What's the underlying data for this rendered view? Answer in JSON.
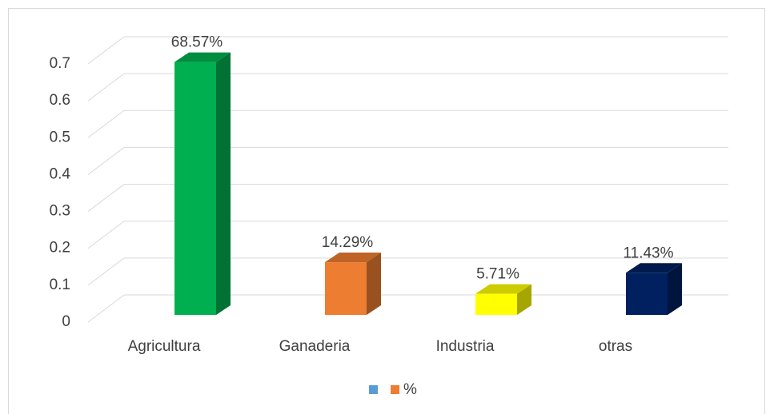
{
  "chart_data": {
    "type": "bar3d",
    "categories": [
      "Agricultura",
      "Ganaderia",
      "Industria",
      "otras"
    ],
    "series": [
      {
        "name": "%",
        "color": "#ed7d31",
        "values": [
          0.6857,
          0.1429,
          0.0571,
          0.1143
        ],
        "value_labels": [
          "68.57%",
          "14.29%",
          "5.71%",
          "11.43%"
        ],
        "colors": [
          "#00b050",
          "#ed7d31",
          "#ffff00",
          "#002060"
        ]
      }
    ],
    "ylim": [
      0,
      0.7
    ],
    "yticks": [
      0,
      0.1,
      0.2,
      0.3,
      0.4,
      0.5,
      0.6,
      0.7
    ],
    "grid": true,
    "legend": "bottom"
  }
}
